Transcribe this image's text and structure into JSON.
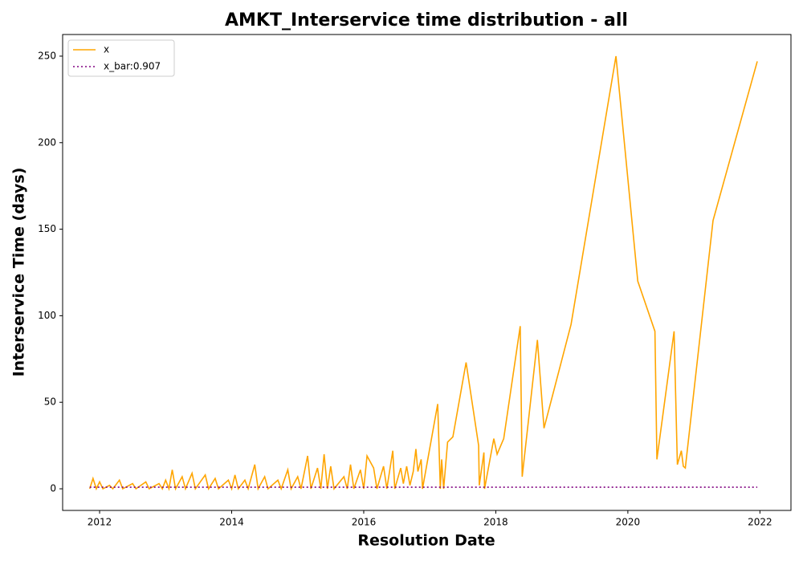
{
  "chart_data": {
    "type": "line",
    "title": "AMKT_Interservice time distribution - all",
    "xlabel": "Resolution Date",
    "ylabel": "Interservice Time (days)",
    "xlim": [
      2011.44,
      2022.47
    ],
    "ylim": [
      -12.5,
      262.5
    ],
    "xticks": [
      2012,
      2014,
      2016,
      2018,
      2020,
      2022
    ],
    "yticks": [
      0,
      50,
      100,
      150,
      200,
      250
    ],
    "legend": "upper left",
    "series": [
      {
        "name": "x",
        "color": "#ffa500",
        "style": "solid",
        "x": [
          2011.85,
          2011.9,
          2011.95,
          2012.0,
          2012.05,
          2012.15,
          2012.2,
          2012.3,
          2012.35,
          2012.5,
          2012.55,
          2012.7,
          2012.75,
          2012.9,
          2012.95,
          2013.0,
          2013.05,
          2013.1,
          2013.15,
          2013.25,
          2013.3,
          2013.4,
          2013.45,
          2013.6,
          2013.65,
          2013.75,
          2013.8,
          2013.95,
          2014.0,
          2014.05,
          2014.1,
          2014.2,
          2014.25,
          2014.35,
          2014.4,
          2014.5,
          2014.55,
          2014.7,
          2014.75,
          2014.85,
          2014.9,
          2015.0,
          2015.05,
          2015.15,
          2015.2,
          2015.3,
          2015.35,
          2015.4,
          2015.45,
          2015.5,
          2015.55,
          2015.7,
          2015.75,
          2015.8,
          2015.85,
          2015.95,
          2016.0,
          2016.05,
          2016.15,
          2016.2,
          2016.3,
          2016.35,
          2016.44,
          2016.47,
          2016.56,
          2016.6,
          2016.65,
          2016.7,
          2016.75,
          2016.79,
          2016.82,
          2016.87,
          2016.89,
          2017.12,
          2017.16,
          2017.18,
          2017.21,
          2017.27,
          2017.35,
          2017.55,
          2017.74,
          2017.75,
          2017.82,
          2017.83,
          2017.97,
          2018.02,
          2018.12,
          2018.37,
          2018.4,
          2018.63,
          2018.73,
          2019.14,
          2019.82,
          2020.15,
          2020.41,
          2020.44,
          2020.7,
          2020.75,
          2020.81,
          2020.84,
          2020.87,
          2021.29,
          2021.96
        ],
        "values": [
          0,
          6,
          0,
          4,
          0,
          2,
          0,
          5,
          0,
          3,
          0,
          4,
          0,
          3,
          0,
          5,
          0,
          11,
          0,
          7,
          0,
          9,
          0,
          8,
          0,
          6,
          0,
          5,
          0,
          8,
          0,
          5,
          0,
          14,
          0,
          7,
          0,
          5,
          0,
          11,
          0,
          7,
          0,
          19,
          0,
          12,
          0,
          20,
          0,
          13,
          0,
          7,
          0,
          14,
          0,
          11,
          0,
          19,
          12,
          0,
          13,
          0,
          22,
          0,
          12,
          3,
          13,
          2,
          10,
          23,
          10,
          17,
          0,
          49,
          0,
          17,
          0,
          27,
          30,
          73,
          25,
          2,
          21,
          0,
          29,
          20,
          29,
          94,
          7,
          86,
          35,
          95,
          250,
          120,
          91,
          17,
          91,
          14,
          22,
          13,
          12,
          155,
          247
        ]
      },
      {
        "name": "x_bar:0.907",
        "color": "#800080",
        "style": "dotted",
        "x": [
          2011.85,
          2021.96
        ],
        "values": [
          0.907,
          0.907
        ]
      }
    ]
  }
}
